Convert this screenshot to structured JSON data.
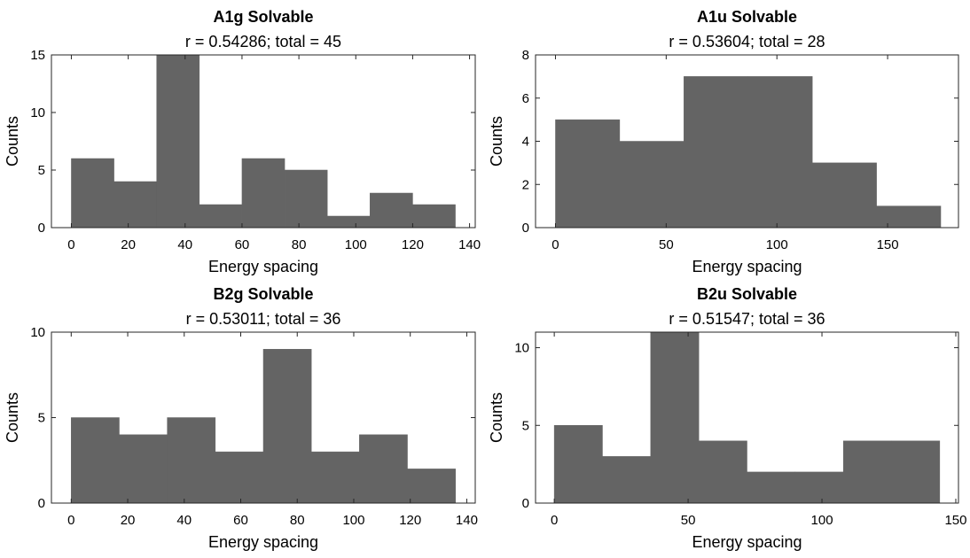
{
  "colors": {
    "bar_fill": "#646464",
    "axis": "#262626",
    "background": "#ffffff"
  },
  "chart_data": [
    {
      "type": "bar",
      "title": "A1g Solvable",
      "subtitle": "r = 0.54286; total = 45",
      "xlabel": "Energy spacing",
      "ylabel": "Counts",
      "xlim": [
        -7,
        142
      ],
      "ylim": [
        0,
        15
      ],
      "xticks": [
        0,
        20,
        40,
        60,
        80,
        100,
        120,
        140
      ],
      "yticks": [
        0,
        5,
        10,
        15
      ],
      "bin_edges": [
        0,
        15,
        30,
        45,
        60,
        75,
        90,
        105,
        120,
        135
      ],
      "values": [
        6,
        4,
        15,
        2,
        6,
        5,
        1,
        3,
        2
      ],
      "grid": false,
      "legend": "none"
    },
    {
      "type": "bar",
      "title": "A1u Solvable",
      "subtitle": "r = 0.53604; total = 28",
      "xlabel": "Energy spacing",
      "ylabel": "Counts",
      "xlim": [
        -9,
        182
      ],
      "ylim": [
        0,
        8
      ],
      "xticks": [
        0,
        50,
        100,
        150
      ],
      "yticks": [
        0,
        2,
        4,
        6,
        8
      ],
      "bin_edges": [
        0,
        29,
        58,
        87,
        116,
        145,
        174
      ],
      "values": [
        5,
        4,
        7,
        7,
        3,
        1
      ],
      "grid": false,
      "legend": "none"
    },
    {
      "type": "bar",
      "title": "B2g Solvable",
      "subtitle": "r = 0.53011; total = 36",
      "xlabel": "Energy spacing",
      "ylabel": "Counts",
      "xlim": [
        -7,
        143
      ],
      "ylim": [
        0,
        10
      ],
      "xticks": [
        0,
        20,
        40,
        60,
        80,
        100,
        120,
        140
      ],
      "yticks": [
        0,
        5,
        10
      ],
      "bin_edges": [
        0,
        17,
        34,
        51,
        68,
        85,
        102,
        119,
        136
      ],
      "values": [
        5,
        4,
        5,
        3,
        9,
        3,
        4,
        2
      ],
      "grid": false,
      "legend": "none"
    },
    {
      "type": "bar",
      "title": "B2u Solvable",
      "subtitle": "r = 0.51547; total = 36",
      "xlabel": "Energy spacing",
      "ylabel": "Counts",
      "xlim": [
        -7,
        151
      ],
      "ylim": [
        0,
        11
      ],
      "xticks": [
        0,
        50,
        100,
        150
      ],
      "yticks": [
        0,
        5,
        10
      ],
      "bin_edges": [
        0,
        18,
        36,
        54,
        72,
        90,
        108,
        126,
        144
      ],
      "values": [
        5,
        3,
        11,
        4,
        2,
        2,
        4,
        4
      ],
      "grid": false,
      "legend": "none"
    }
  ]
}
